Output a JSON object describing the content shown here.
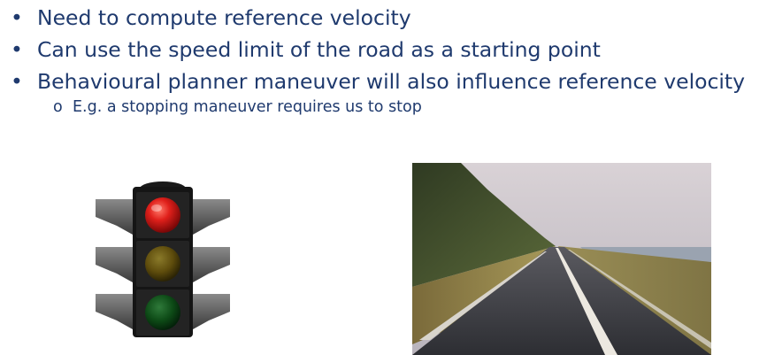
{
  "bullets": [
    {
      "marker": "•",
      "text": "Need to compute reference velocity"
    },
    {
      "marker": "•",
      "text": "Can use the speed limit of the road as a starting point"
    },
    {
      "marker": "•",
      "text": "Behavioural planner maneuver will also influence reference velocity"
    }
  ],
  "sub_bullet": {
    "marker": "o",
    "text": "E.g. a stopping maneuver requires us to stop"
  },
  "colors": {
    "text": "#1f3a6e",
    "red_light": "#e0201b",
    "amber_light_off": "#6e5a10",
    "green_light_off": "#0d4a16"
  },
  "images": {
    "traffic_light": "traffic-light-icon",
    "road": "road-photo"
  }
}
